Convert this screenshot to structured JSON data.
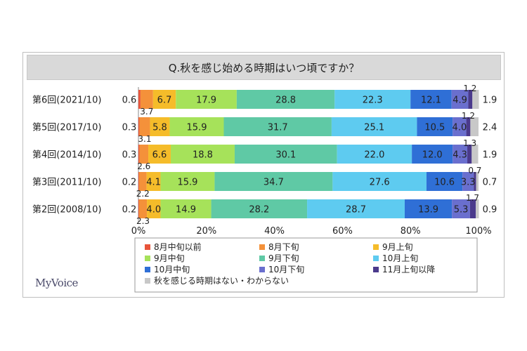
{
  "chart_data": {
    "type": "bar",
    "orientation": "horizontal-stacked-100",
    "title": "Q.秋を感じ始める時期はいつ頃ですか？",
    "categories": [
      "第6回(2021/10)",
      "第5回(2017/10)",
      "第4回(2014/10)",
      "第3回(2011/10)",
      "第2回(2008/10)"
    ],
    "series": [
      {
        "name": "8月中旬以前",
        "color": "#e8543a",
        "values": [
          0.6,
          0.3,
          0.3,
          0.2,
          0.2
        ]
      },
      {
        "name": "8月下旬",
        "color": "#f4913a",
        "values": [
          3.7,
          3.1,
          2.6,
          2.2,
          2.3
        ]
      },
      {
        "name": "9月上旬",
        "color": "#f5bc2a",
        "values": [
          6.7,
          5.8,
          6.6,
          4.1,
          4.0
        ]
      },
      {
        "name": "9月中旬",
        "color": "#a6e25a",
        "values": [
          17.9,
          15.9,
          18.8,
          15.9,
          14.9
        ]
      },
      {
        "name": "9月下旬",
        "color": "#5fc9a5",
        "values": [
          28.8,
          31.7,
          30.1,
          34.7,
          28.2
        ]
      },
      {
        "name": "10月上旬",
        "color": "#5ecbf0",
        "values": [
          22.3,
          25.1,
          22.0,
          27.6,
          28.7
        ]
      },
      {
        "name": "10月中旬",
        "color": "#2f6fd6",
        "values": [
          12.1,
          10.5,
          12.0,
          10.6,
          13.9
        ]
      },
      {
        "name": "10月下旬",
        "color": "#6a6fce",
        "values": [
          4.9,
          4.0,
          4.3,
          3.3,
          5.3
        ]
      },
      {
        "name": "11月上旬以降",
        "color": "#4b3a8c",
        "values": [
          1.2,
          1.2,
          1.3,
          0.7,
          1.7
        ]
      },
      {
        "name": "秋を感じる時期はない・わからない",
        "color": "#c8c8c8",
        "values": [
          1.9,
          2.4,
          1.9,
          0.7,
          0.9
        ]
      }
    ],
    "xticks": [
      "0%",
      "20%",
      "40%",
      "60%",
      "80%",
      "100%"
    ],
    "xlim": [
      0,
      100
    ],
    "legend_position": "bottom",
    "grid": false
  },
  "logo_text": "MyVoice"
}
